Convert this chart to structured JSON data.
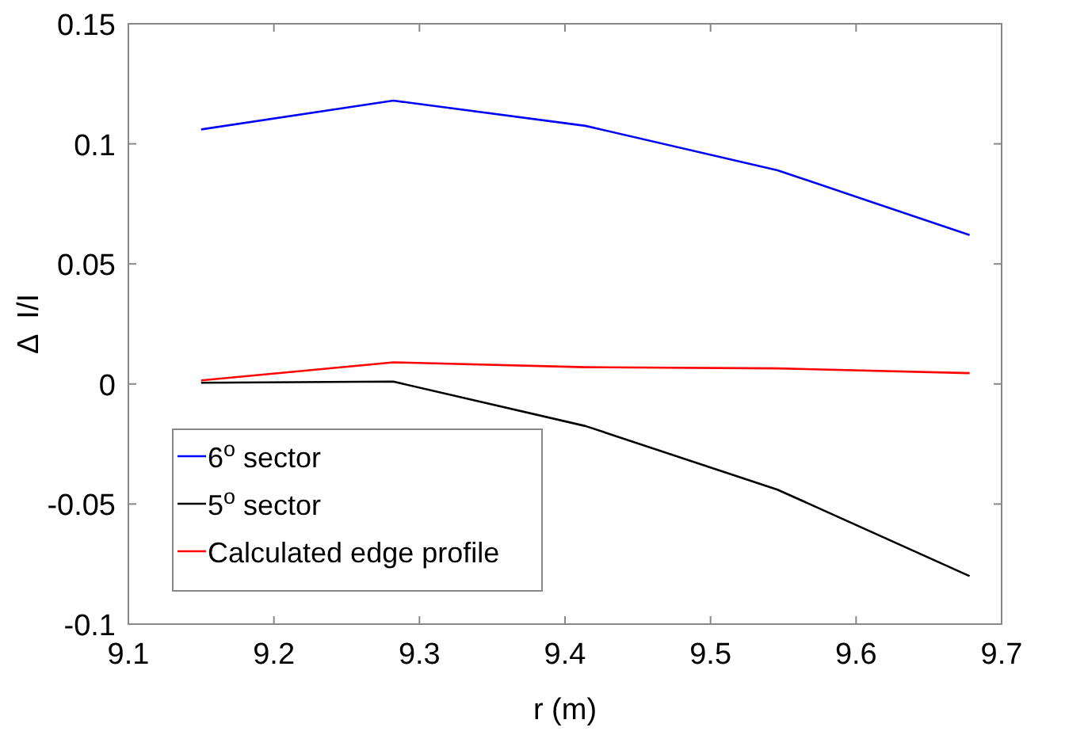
{
  "chart_data": {
    "type": "line",
    "xlabel": "r (m)",
    "ylabel": "Δ  I/I",
    "x": [
      9.15,
      9.282,
      9.414,
      9.546,
      9.678
    ],
    "xlim": [
      9.1,
      9.7
    ],
    "xticks": [
      9.1,
      9.2,
      9.3,
      9.4,
      9.5,
      9.6,
      9.7
    ],
    "ylim": [
      -0.1,
      0.15
    ],
    "yticks": [
      -0.1,
      -0.05,
      0,
      0.05,
      0.1,
      0.15
    ],
    "grid": false,
    "legend": "bottom left",
    "marker": "none",
    "line_style": "solid",
    "series": [
      {
        "name": "6$^{o}$ sector",
        "color": "#0000ff",
        "values": [
          0.106,
          0.118,
          0.1075,
          0.089,
          0.062
        ]
      },
      {
        "name": "5$^{o}$ sector",
        "color": "#000000",
        "values": [
          0.0005,
          0.001,
          -0.0175,
          -0.044,
          -0.08
        ]
      },
      {
        "name": "Calculated edge profile",
        "color": "#ff0000",
        "values": [
          0.0015,
          0.009,
          0.007,
          0.0065,
          0.0045
        ]
      }
    ]
  }
}
